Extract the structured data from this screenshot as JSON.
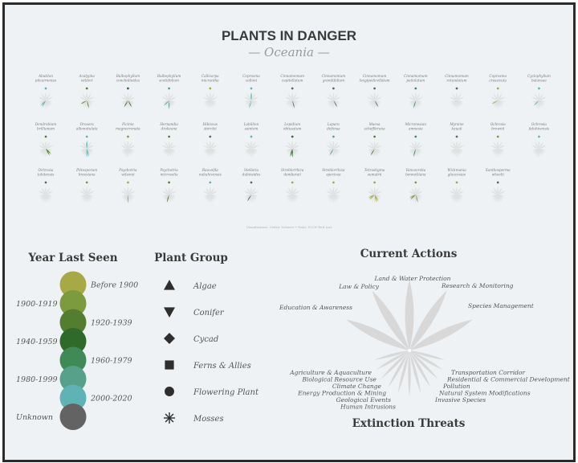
{
  "header": {
    "title": "PLANTS IN DANGER",
    "subtitle": "— Oceania —"
  },
  "credit": "Visualization: Cédric Scherer • Data: IUCN Red List",
  "colors": {
    "background": "#eef2f4",
    "leaf_base": "#dadada",
    "title": "#3a3a3a",
    "Before 1900": "#a7a946",
    "1900-1919": "#7c9a3e",
    "1920-1939": "#547e2f",
    "1940-1959": "#2f6a2a",
    "1960-1979": "#3f8a56",
    "1980-1999": "#57a08a",
    "2000-2020": "#5fb3b5",
    "Unknown": "#636363"
  },
  "legend_year": {
    "title": "Year Last Seen",
    "items": [
      {
        "label": "Before 1900",
        "side": "right"
      },
      {
        "label": "1900-1919",
        "side": "left"
      },
      {
        "label": "1920-1939",
        "side": "right"
      },
      {
        "label": "1940-1959",
        "side": "left"
      },
      {
        "label": "1960-1979",
        "side": "right"
      },
      {
        "label": "1980-1999",
        "side": "left"
      },
      {
        "label": "2000-2020",
        "side": "right"
      },
      {
        "label": "Unknown",
        "side": "left"
      }
    ]
  },
  "legend_group": {
    "title": "Plant Group",
    "items": [
      {
        "label": "Algae",
        "icon": "triangle-up-icon"
      },
      {
        "label": "Conifer",
        "icon": "triangle-down-icon"
      },
      {
        "label": "Cycad",
        "icon": "diamond-icon"
      },
      {
        "label": "Ferns & Allies",
        "icon": "square-icon"
      },
      {
        "label": "Flowering Plant",
        "icon": "circle-icon"
      },
      {
        "label": "Mosses",
        "icon": "asterisk-icon"
      }
    ]
  },
  "legend_actions": {
    "top_title": "Current Actions",
    "bottom_title": "Extinction Threats",
    "actions": [
      "Education & Awareness",
      "Law & Policy",
      "Land & Water Protection",
      "Research & Monitoring",
      "Species Management"
    ],
    "threats_left": [
      "Agriculture & Aquaculture",
      "Biological Resource Use",
      "Climate Change",
      "Energy Production & Mining",
      "Geological Events",
      "Human Intrusions"
    ],
    "threats_right": [
      "Transportation Corridor",
      "Residential & Commercial Development",
      "Pollution",
      "Natural System Modifications",
      "Invasive Species"
    ]
  },
  "chart_data": {
    "type": "glyph-grid",
    "title": "PLANTS IN DANGER",
    "subtitle": "— Oceania —",
    "encoding": {
      "color": "Year Last Seen",
      "shape": "Plant Group"
    },
    "species": [
      {
        "name": "Abutilon pitcairnense",
        "year": "2000-2020",
        "group": "Flowering Plant",
        "actions": [],
        "threats": [
          7,
          8
        ]
      },
      {
        "name": "Acalypha wilderi",
        "year": "1920-1939",
        "group": "Flowering Plant",
        "actions": [],
        "threats": [
          4,
          9
        ]
      },
      {
        "name": "Bulbophyllum conchidioides",
        "year": "1940-1959",
        "group": "Flowering Plant",
        "actions": [],
        "threats": [
          3,
          7
        ]
      },
      {
        "name": "Bulbophyllum scotiifolium",
        "year": "1980-1999",
        "group": "Flowering Plant",
        "actions": [],
        "threats": [
          5,
          8
        ]
      },
      {
        "name": "Callicarpa micrantha",
        "year": "Before 1900",
        "group": "Flowering Plant",
        "actions": [],
        "threats": []
      },
      {
        "name": "Coprosma colloni",
        "year": "2000-2020",
        "group": "Flowering Plant",
        "actions": [
          2
        ],
        "threats": [
          6
        ]
      },
      {
        "name": "Cinnamomum capitellatum",
        "year": "Unknown",
        "group": "Flowering Plant",
        "actions": [],
        "threats": [
          4
        ]
      },
      {
        "name": "Cinnamomum grandifolium",
        "year": "Unknown",
        "group": "Flowering Plant",
        "actions": [],
        "threats": [
          3
        ]
      },
      {
        "name": "Cinnamomum longipedicellatum",
        "year": "Unknown",
        "group": "Flowering Plant",
        "actions": [],
        "threats": [
          3
        ]
      },
      {
        "name": "Cinnamomum petiolatum",
        "year": "1960-1979",
        "group": "Flowering Plant",
        "actions": [],
        "threats": [
          6
        ]
      },
      {
        "name": "Cinnamomum rotundatum",
        "year": "Unknown",
        "group": "Flowering Plant",
        "actions": [],
        "threats": []
      },
      {
        "name": "Coprosma crassicuta",
        "year": "Before 1900",
        "group": "Flowering Plant",
        "actions": [],
        "threats": [
          9
        ]
      },
      {
        "name": "Cyclophyllum balansae",
        "year": "2000-2020",
        "group": "Flowering Plant",
        "actions": [],
        "threats": [
          8
        ]
      },
      {
        "name": "Dendrobium brillianum",
        "year": "1920-1939",
        "group": "Flowering Plant",
        "actions": [],
        "threats": [
          3,
          2
        ]
      },
      {
        "name": "Drosera albonotulata",
        "year": "2000-2020",
        "group": "Flowering Plant",
        "actions": [
          2
        ],
        "threats": [
          4,
          5
        ]
      },
      {
        "name": "Ficinia magnocrenata",
        "year": "1900-1919",
        "group": "Flowering Plant",
        "actions": [],
        "threats": []
      },
      {
        "name": "Hernandia drakeana",
        "year": "1920-1939",
        "group": "Flowering Plant",
        "actions": [],
        "threats": []
      },
      {
        "name": "Hibiscus storckii",
        "year": "Unknown",
        "group": "Flowering Plant",
        "actions": [],
        "threats": []
      },
      {
        "name": "Labillion saintem",
        "year": "2000-2020",
        "group": "Flowering Plant",
        "actions": [],
        "threats": []
      },
      {
        "name": "Lepidium obtusatum",
        "year": "1940-1959",
        "group": "Flowering Plant",
        "actions": [],
        "threats": [
          5,
          6
        ]
      },
      {
        "name": "Lapara defensa",
        "year": "1980-1999",
        "group": "Flowering Plant",
        "actions": [],
        "threats": [
          7
        ]
      },
      {
        "name": "Maesa schefflerana",
        "year": "1920-1939",
        "group": "Flowering Plant",
        "actions": [],
        "threats": [
          7
        ]
      },
      {
        "name": "Micronesian amnesia",
        "year": "1960-1979",
        "group": "Flowering Plant",
        "actions": [],
        "threats": [
          6
        ]
      },
      {
        "name": "Myrsine kauaii",
        "year": "Unknown",
        "group": "Flowering Plant",
        "actions": [],
        "threats": []
      },
      {
        "name": "Ochrosia brownii",
        "year": "1900-1919",
        "group": "Flowering Plant",
        "actions": [],
        "threats": []
      },
      {
        "name": "Ochrosia fatuhivensis",
        "year": "2000-2020",
        "group": "Flowering Plant",
        "actions": [],
        "threats": []
      },
      {
        "name": "Ochrosia tahitensis",
        "year": "Unknown",
        "group": "Flowering Plant",
        "actions": [],
        "threats": []
      },
      {
        "name": "Pittosporum breesiana",
        "year": "1900-1919",
        "group": "Flowering Plant",
        "actions": [],
        "threats": []
      },
      {
        "name": "Psychotria wilsonii",
        "year": "Before 1900",
        "group": "Flowering Plant",
        "actions": [],
        "threats": [
          5
        ]
      },
      {
        "name": "Psychotria microsolia",
        "year": "1920-1939",
        "group": "Flowering Plant",
        "actions": [],
        "threats": [
          6
        ]
      },
      {
        "name": "Rauvolfia nukuhivensis",
        "year": "2000-2020",
        "group": "Flowering Plant",
        "actions": [],
        "threats": []
      },
      {
        "name": "Stellaria dubiosides",
        "year": "Unknown",
        "group": "Flowering Plant",
        "actions": [],
        "threats": [
          7
        ]
      },
      {
        "name": "Streblorrhiza dambaraii",
        "year": "Before 1900",
        "group": "Flowering Plant",
        "actions": [],
        "threats": []
      },
      {
        "name": "Streblorrhiza speciosa",
        "year": "Before 1900",
        "group": "Flowering Plant",
        "actions": [],
        "threats": []
      },
      {
        "name": "Tetrastigma sumatrii",
        "year": "Before 1900",
        "group": "Flowering Plant",
        "actions": [],
        "threats": [
          3,
          4,
          8,
          9
        ]
      },
      {
        "name": "Vanvoorstia bennettiana",
        "year": "1900-1919",
        "group": "Flowering Plant",
        "actions": [],
        "threats": [
          4,
          8,
          9
        ]
      },
      {
        "name": "Wickmania glaucesiae",
        "year": "Before 1900",
        "group": "Flowering Plant",
        "actions": [],
        "threats": []
      },
      {
        "name": "Xanthosperma wheelii",
        "year": "Unknown",
        "group": "Flowering Plant",
        "actions": [],
        "threats": []
      }
    ]
  }
}
